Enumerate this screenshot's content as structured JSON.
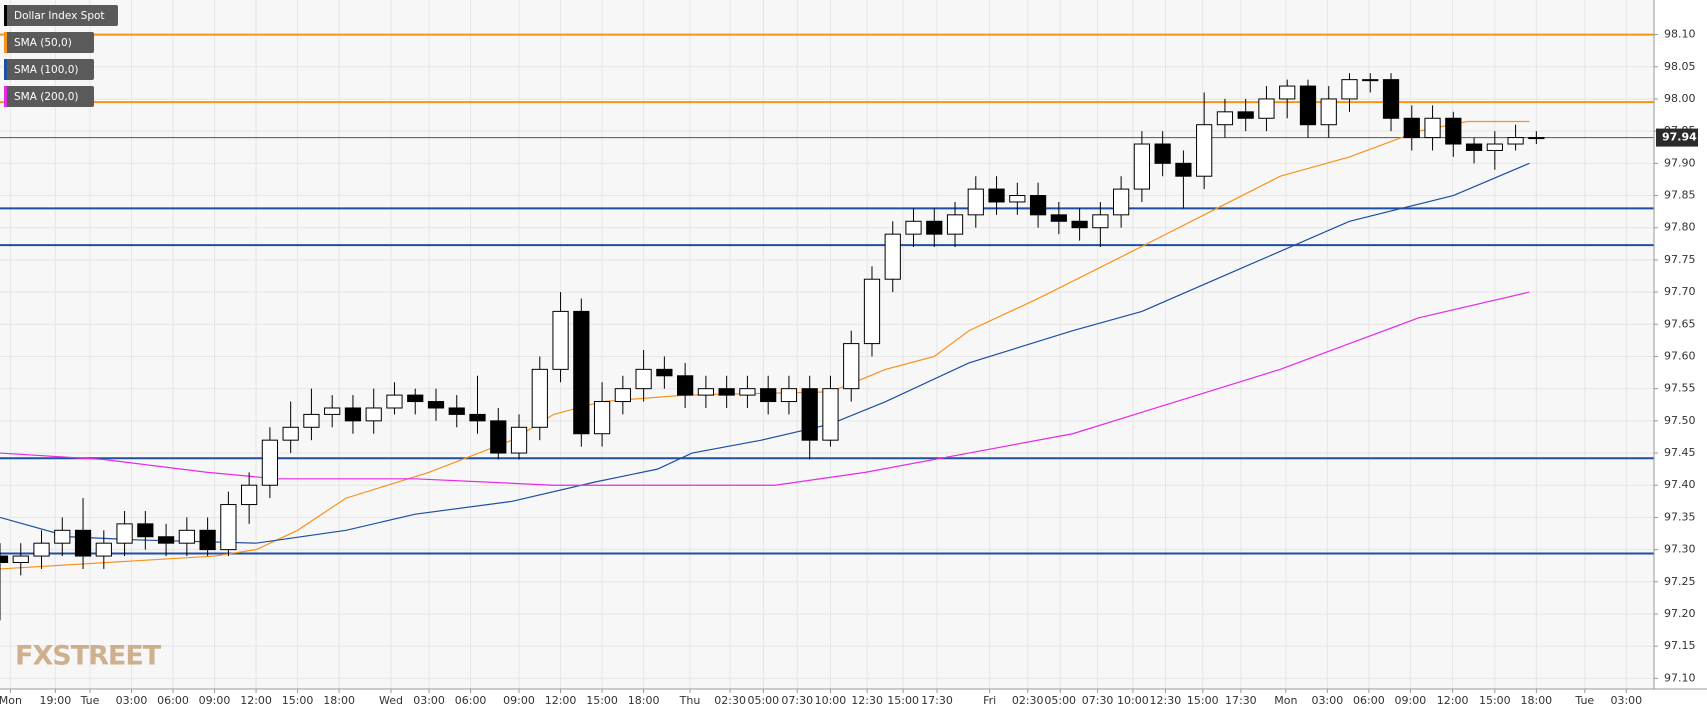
{
  "chart_data": {
    "type": "candlestick",
    "name": "Dollar Index Spot",
    "watermark": "FXSTREET",
    "up_color": "#ffffff",
    "down_color": "#000000",
    "x": [
      0,
      3,
      6,
      9,
      12,
      15,
      18,
      21,
      24,
      27,
      30,
      33,
      36,
      39,
      42,
      45,
      48,
      51,
      54,
      57,
      60,
      63,
      66,
      69,
      72,
      75,
      78,
      81,
      84,
      87,
      90,
      93,
      96,
      99,
      102,
      105,
      108,
      111,
      114,
      117,
      120,
      123,
      126,
      129,
      132,
      135,
      138,
      141,
      144,
      147,
      150,
      153,
      156,
      159,
      162,
      165,
      168,
      171,
      174,
      177,
      180,
      183,
      186,
      189,
      192,
      195,
      198,
      201,
      204,
      207,
      210,
      213,
      216,
      219,
      222
    ],
    "open": [
      97.29,
      97.28,
      97.29,
      97.31,
      97.33,
      97.29,
      97.31,
      97.34,
      97.32,
      97.31,
      97.33,
      97.3,
      97.37,
      97.4,
      97.47,
      97.49,
      97.51,
      97.52,
      97.5,
      97.52,
      97.54,
      97.53,
      97.52,
      97.51,
      97.5,
      97.45,
      97.49,
      97.58,
      97.67,
      97.48,
      97.53,
      97.55,
      97.58,
      97.57,
      97.54,
      97.55,
      97.54,
      97.55,
      97.53,
      97.55,
      97.47,
      97.55,
      97.62,
      97.72,
      97.79,
      97.81,
      97.79,
      97.82,
      97.86,
      97.84,
      97.85,
      97.82,
      97.81,
      97.8,
      97.82,
      97.86,
      97.93,
      97.9,
      97.88,
      97.96,
      97.98,
      97.97,
      98.0,
      98.02,
      97.96,
      98.0,
      98.03,
      98.03,
      97.97,
      97.94,
      97.97,
      97.93,
      97.92,
      97.93,
      97.94
    ],
    "high": [
      97.31,
      97.31,
      97.33,
      97.35,
      97.38,
      97.33,
      97.36,
      97.36,
      97.34,
      97.35,
      97.35,
      97.39,
      97.42,
      97.49,
      97.53,
      97.55,
      97.54,
      97.54,
      97.55,
      97.56,
      97.55,
      97.55,
      97.54,
      97.57,
      97.52,
      97.51,
      97.6,
      97.7,
      97.69,
      97.56,
      97.57,
      97.61,
      97.6,
      97.59,
      97.57,
      97.57,
      97.57,
      97.57,
      97.57,
      97.57,
      97.57,
      97.64,
      97.74,
      97.81,
      97.83,
      97.83,
      97.84,
      97.88,
      97.88,
      97.87,
      97.87,
      97.84,
      97.83,
      97.84,
      97.88,
      97.95,
      97.95,
      97.92,
      98.01,
      98.0,
      98.0,
      98.02,
      98.03,
      98.03,
      98.02,
      98.04,
      98.04,
      98.04,
      97.99,
      97.99,
      97.98,
      97.94,
      97.95,
      97.96,
      97.95
    ],
    "low": [
      97.19,
      97.26,
      97.27,
      97.29,
      97.27,
      97.27,
      97.29,
      97.3,
      97.29,
      97.29,
      97.29,
      97.29,
      97.34,
      97.38,
      97.45,
      97.47,
      97.49,
      97.48,
      97.48,
      97.51,
      97.51,
      97.5,
      97.49,
      97.48,
      97.44,
      97.44,
      97.47,
      97.56,
      97.46,
      97.46,
      97.51,
      97.53,
      97.55,
      97.52,
      97.52,
      97.52,
      97.52,
      97.51,
      97.51,
      97.44,
      97.46,
      97.53,
      97.6,
      97.7,
      97.77,
      97.77,
      97.77,
      97.8,
      97.82,
      97.82,
      97.8,
      97.79,
      97.78,
      97.77,
      97.8,
      97.84,
      97.88,
      97.83,
      97.86,
      97.94,
      97.95,
      97.95,
      97.97,
      97.94,
      97.94,
      97.98,
      98.01,
      97.95,
      97.92,
      97.92,
      97.91,
      97.9,
      97.89,
      97.92,
      97.93
    ],
    "close": [
      97.28,
      97.29,
      97.31,
      97.33,
      97.29,
      97.31,
      97.34,
      97.32,
      97.31,
      97.33,
      97.3,
      97.37,
      97.4,
      97.47,
      97.49,
      97.51,
      97.52,
      97.5,
      97.52,
      97.54,
      97.53,
      97.52,
      97.51,
      97.5,
      97.45,
      97.49,
      97.58,
      97.67,
      97.48,
      97.53,
      97.55,
      97.58,
      97.57,
      97.54,
      97.55,
      97.54,
      97.55,
      97.53,
      97.55,
      97.47,
      97.55,
      97.62,
      97.72,
      97.79,
      97.81,
      97.79,
      97.82,
      97.86,
      97.84,
      97.85,
      97.82,
      97.81,
      97.8,
      97.82,
      97.86,
      97.93,
      97.9,
      97.88,
      97.96,
      97.98,
      97.97,
      98.0,
      98.02,
      97.96,
      98.0,
      98.03,
      98.03,
      97.97,
      97.94,
      97.97,
      97.93,
      97.92,
      97.93,
      97.94,
      97.94
    ],
    "series": [
      {
        "name": "SMA (50,0)",
        "color": "#f7931a",
        "x": [
          0,
          31,
          37,
          43,
          50,
          62,
          74,
          80,
          87,
          99,
          120,
          128,
          135,
          140,
          150,
          163,
          174,
          185,
          195,
          205,
          212,
          221
        ],
        "values": [
          97.27,
          97.29,
          97.3,
          97.33,
          97.38,
          97.42,
          97.47,
          97.51,
          97.53,
          97.54,
          97.545,
          97.58,
          97.6,
          97.64,
          97.69,
          97.76,
          97.82,
          97.88,
          97.91,
          97.95,
          97.965,
          97.965
        ]
      },
      {
        "name": "SMA (100,0)",
        "color": "#1f4fa0",
        "x": [
          0,
          10,
          20,
          37,
          50,
          60,
          74,
          86,
          95,
          100,
          110,
          120,
          128,
          140,
          155,
          165,
          180,
          195,
          210,
          221
        ],
        "values": [
          97.35,
          97.32,
          97.315,
          97.31,
          97.33,
          97.355,
          97.375,
          97.405,
          97.425,
          97.45,
          97.47,
          97.495,
          97.53,
          97.59,
          97.64,
          97.67,
          97.74,
          97.81,
          97.85,
          97.9
        ]
      },
      {
        "name": "SMA (200,0)",
        "color": "#e62be6",
        "x": [
          0,
          15,
          30,
          40,
          60,
          80,
          100,
          112,
          125,
          140,
          155,
          170,
          185,
          195,
          205,
          221
        ],
        "values": [
          97.45,
          97.44,
          97.42,
          97.41,
          97.41,
          97.4,
          97.4,
          97.4,
          97.42,
          97.45,
          97.48,
          97.53,
          97.58,
          97.62,
          97.66,
          97.7
        ]
      }
    ],
    "levels": [
      {
        "value": 98.1,
        "color": "#f7931a"
      },
      {
        "value": 97.995,
        "color": "#f7931a"
      },
      {
        "value": 97.83,
        "color": "#1f4fa0"
      },
      {
        "value": 97.773,
        "color": "#1f4fa0"
      },
      {
        "value": 97.442,
        "color": "#1f4fa0"
      },
      {
        "value": 97.294,
        "color": "#1f4fa0"
      }
    ],
    "last": 97.94,
    "last_color": "#2b2b2b",
    "ylim": [
      97.0835,
      98.1537
    ],
    "yticks": [
      {
        "value": 97.1,
        "label": "97.10"
      },
      {
        "value": 97.15,
        "label": "97.15"
      },
      {
        "value": 97.2,
        "label": "97.20"
      },
      {
        "value": 97.25,
        "label": "97.25"
      },
      {
        "value": 97.3,
        "label": "97.30"
      },
      {
        "value": 97.35,
        "label": "97.35"
      },
      {
        "value": 97.4,
        "label": "97.40"
      },
      {
        "value": 97.45,
        "label": "97.45"
      },
      {
        "value": 97.5,
        "label": "97.50"
      },
      {
        "value": 97.55,
        "label": "97.55"
      },
      {
        "value": 97.6,
        "label": "97.60"
      },
      {
        "value": 97.65,
        "label": "97.65"
      },
      {
        "value": 97.7,
        "label": "97.70"
      },
      {
        "value": 97.75,
        "label": "97.75"
      },
      {
        "value": 97.8,
        "label": "97.80"
      },
      {
        "value": 97.85,
        "label": "97.85"
      },
      {
        "value": 97.9,
        "label": "97.90"
      },
      {
        "value": 97.95,
        "label": "97.95"
      },
      {
        "value": 98.0,
        "label": "98.00"
      },
      {
        "value": 98.05,
        "label": "98.05"
      },
      {
        "value": 98.1,
        "label": "98.10"
      }
    ],
    "xlim": [
      0,
      239
    ],
    "xticks": [
      {
        "value": 1.5,
        "label": "Mon"
      },
      {
        "value": 8,
        "label": "19:00"
      },
      {
        "value": 13,
        "label": "Tue"
      },
      {
        "value": 19,
        "label": "03:00"
      },
      {
        "value": 25,
        "label": "06:00"
      },
      {
        "value": 31,
        "label": "09:00"
      },
      {
        "value": 37,
        "label": "12:00"
      },
      {
        "value": 43,
        "label": "15:00"
      },
      {
        "value": 49,
        "label": "18:00"
      },
      {
        "value": 56.5,
        "label": "Wed"
      },
      {
        "value": 62,
        "label": "03:00"
      },
      {
        "value": 68,
        "label": "06:00"
      },
      {
        "value": 75,
        "label": "09:00"
      },
      {
        "value": 81,
        "label": "12:00"
      },
      {
        "value": 87,
        "label": "15:00"
      },
      {
        "value": 93,
        "label": "18:00"
      },
      {
        "value": 99.7,
        "label": "Thu"
      },
      {
        "value": 105.5,
        "label": "02:30"
      },
      {
        "value": 110.3,
        "label": "05:00"
      },
      {
        "value": 115.2,
        "label": "07:30"
      },
      {
        "value": 120,
        "label": "10:00"
      },
      {
        "value": 125.3,
        "label": "12:30"
      },
      {
        "value": 130.5,
        "label": "15:00"
      },
      {
        "value": 135.4,
        "label": "17:30"
      },
      {
        "value": 143,
        "label": "Fri"
      },
      {
        "value": 148.5,
        "label": "02:30"
      },
      {
        "value": 153.2,
        "label": "05:00"
      },
      {
        "value": 158.6,
        "label": "07:30"
      },
      {
        "value": 163.7,
        "label": "10:00"
      },
      {
        "value": 168.4,
        "label": "12:30"
      },
      {
        "value": 173.8,
        "label": "15:00"
      },
      {
        "value": 179.3,
        "label": "17:30"
      },
      {
        "value": 185.8,
        "label": "Mon"
      },
      {
        "value": 191.8,
        "label": "03:00"
      },
      {
        "value": 197.8,
        "label": "06:00"
      },
      {
        "value": 203.8,
        "label": "09:00"
      },
      {
        "value": 209.9,
        "label": "12:00"
      },
      {
        "value": 216,
        "label": "15:00"
      },
      {
        "value": 222,
        "label": "18:00"
      },
      {
        "value": 229,
        "label": "Tue"
      },
      {
        "value": 235,
        "label": "03:00"
      }
    ],
    "grid": true
  }
}
